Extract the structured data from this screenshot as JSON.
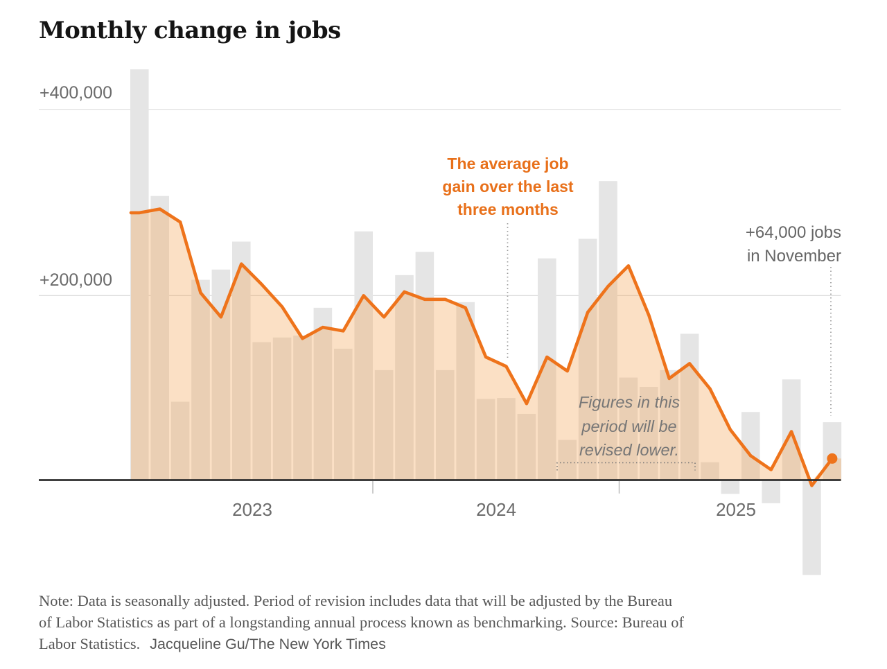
{
  "title": "Monthly change in jobs",
  "chart_data": {
    "type": "bar",
    "title": "Monthly change in jobs",
    "units": "monthly change in jobs, values in thousands",
    "months": [
      "2023-01",
      "2023-02",
      "2023-03",
      "2023-04",
      "2023-05",
      "2023-06",
      "2023-07",
      "2023-08",
      "2023-09",
      "2023-10",
      "2023-11",
      "2023-12",
      "2024-01",
      "2024-02",
      "2024-03",
      "2024-04",
      "2024-05",
      "2024-06",
      "2024-07",
      "2024-08",
      "2024-09",
      "2024-10",
      "2024-11",
      "2024-12",
      "2025-01",
      "2025-02",
      "2025-03",
      "2025-04",
      "2025-05",
      "2025-06",
      "2025-07",
      "2025-08",
      "2025-09",
      "2025-10",
      "2025-11"
    ],
    "series": [
      {
        "name": "Monthly change in jobs",
        "type": "bar",
        "values": [
          443,
          307,
          86,
          217,
          228,
          258,
          150,
          155,
          157,
          187,
          143,
          269,
          120,
          222,
          247,
          120,
          193,
          89,
          90,
          73,
          240,
          45,
          261,
          323,
          112,
          102,
          120,
          159,
          21,
          -13,
          75,
          -23,
          110,
          -100,
          64
        ]
      },
      {
        "name": "Average job gain over the last three months",
        "type": "line",
        "values": [
          289,
          293,
          279,
          203,
          177,
          234,
          212,
          188,
          154,
          166,
          162,
          200,
          177,
          204,
          196,
          196,
          187,
          134,
          124,
          84,
          134,
          119,
          182,
          210,
          232,
          179,
          111,
          127,
          100,
          56,
          28,
          13,
          54,
          -4,
          25
        ]
      }
    ],
    "latest_point": {
      "month": "2025-11",
      "bar_value": 64,
      "line_value": 25
    },
    "y_axis": {
      "tick_values": [
        400,
        200
      ],
      "tick_labels": [
        "+400,000",
        "+200,000"
      ],
      "ylim": [
        -135,
        460
      ],
      "grid": true
    },
    "x_axis": {
      "tick_labels": [
        "2023",
        "2024",
        "2025"
      ]
    },
    "legend_position": "none (annotated directly on chart)"
  },
  "annotations": {
    "avg_label": {
      "lines": [
        "The average job",
        "gain over the last",
        "three months"
      ]
    },
    "nov_label": {
      "lines": [
        "+64,000 jobs",
        "in November"
      ]
    },
    "revision_label": {
      "lines": [
        "Figures in this",
        "period will be",
        "revised lower."
      ]
    }
  },
  "note": {
    "line1": "Note: Data is seasonally adjusted. Period of revision includes data that will be adjusted by the Bureau",
    "line2": "of Labor Statistics as part of a longstanding annual process known as benchmarking. Source: Bureau of",
    "line3_serif": "Labor Statistics.",
    "line3_sans": "Jacqueline Gu/The New York Times"
  },
  "colors": {
    "line_orange": "#ee731b",
    "annotation_orange": "#e8701a",
    "bar_gray": "#e5e5e5",
    "area_fill": "rgba(243,166,89,0.35)",
    "axis_text": "#6b6b6b",
    "annotation_gray": "#666666",
    "revision_gray": "#767676",
    "note_gray": "#565656",
    "gridline": "#dcdcdc",
    "axis_line": "#2e2e2e",
    "dotted_guide": "#999999",
    "title_black": "#141414"
  }
}
